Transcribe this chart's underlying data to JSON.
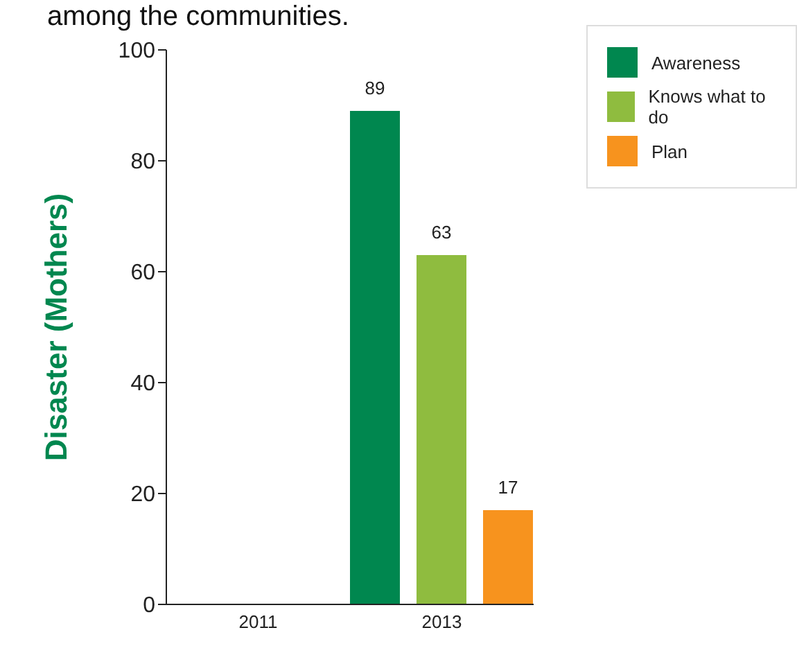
{
  "chart_data": {
    "type": "bar",
    "title": "among the communities.",
    "ylabel": "Disaster (Mothers)",
    "categories": [
      "2011",
      "2013"
    ],
    "series": [
      {
        "name": "Awareness",
        "color": "#00874f",
        "values": [
          null,
          89
        ]
      },
      {
        "name": "Knows what to do",
        "color": "#8fbc3f",
        "values": [
          null,
          63
        ]
      },
      {
        "name": "Plan",
        "color": "#f7931e",
        "values": [
          null,
          17
        ]
      }
    ],
    "ylim": [
      0,
      100
    ],
    "yticks": [
      0,
      20,
      40,
      60,
      80,
      100
    ],
    "grid": false,
    "legend": "top right",
    "data_labels": true
  }
}
